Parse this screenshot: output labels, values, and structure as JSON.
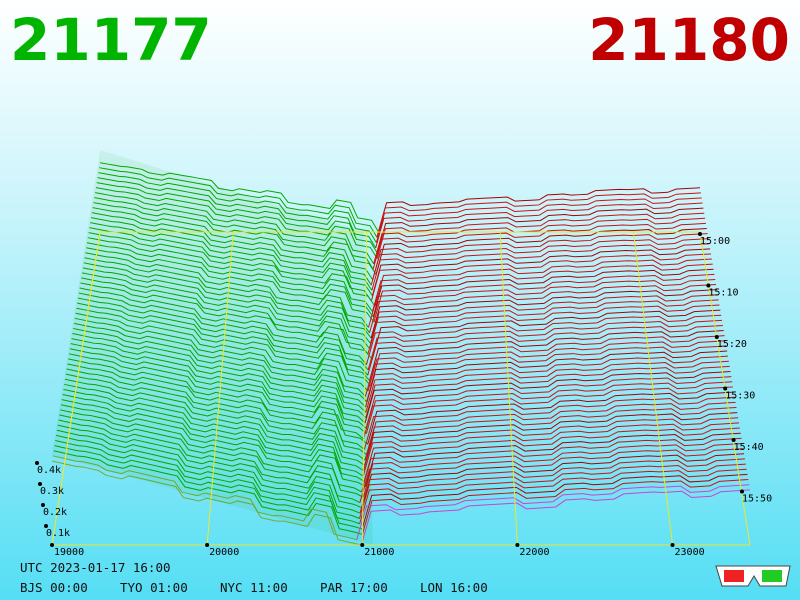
{
  "header": {
    "bid": "21177",
    "ask": "21180"
  },
  "axes": {
    "price_ticks": [
      "19000",
      "20000",
      "21000",
      "22000",
      "23000"
    ],
    "volume_ticks": [
      "0.1k",
      "0.2k",
      "0.3k",
      "0.4k"
    ],
    "time_ticks": [
      "15:00",
      "15:10",
      "15:20",
      "15:30",
      "15:40",
      "15:50"
    ]
  },
  "footer": {
    "utc": "UTC 2023-01-17 16:00",
    "clocks": [
      "BJS 00:00",
      "TYO 01:00",
      "NYC 11:00",
      "PAR 17:00",
      "LON 16:00"
    ]
  }
}
